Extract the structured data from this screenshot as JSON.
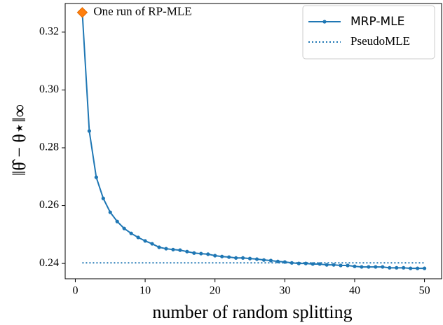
{
  "chart_data": {
    "type": "line",
    "xlabel": "number of random splitting",
    "ylabel": "‖θ̂ − θ⋆‖∞",
    "xlim": [
      -1.45,
      52.45
    ],
    "ylim": [
      0.2347,
      0.3299
    ],
    "xticks": [
      0,
      10,
      20,
      30,
      40,
      50
    ],
    "yticks": [
      0.24,
      0.26,
      0.28,
      {
        "value": 0.3,
        "label": "0.30"
      },
      0.32
    ],
    "legend": "upper right",
    "series": [
      {
        "name": "MRP-MLE",
        "color": "#1f77b4",
        "style": "solid",
        "x": [
          1,
          2,
          3,
          4,
          5,
          6,
          7,
          8,
          9,
          10,
          11,
          12,
          13,
          14,
          15,
          16,
          17,
          18,
          19,
          20,
          21,
          22,
          23,
          24,
          25,
          26,
          27,
          28,
          29,
          30,
          31,
          32,
          33,
          34,
          35,
          36,
          37,
          38,
          39,
          40,
          41,
          42,
          43,
          44,
          45,
          46,
          47,
          48,
          49,
          50
        ],
        "values": [
          0.3268,
          0.2858,
          0.2698,
          0.2625,
          0.2577,
          0.2545,
          0.2521,
          0.2504,
          0.249,
          0.2478,
          0.2468,
          0.2456,
          0.2451,
          0.2448,
          0.2446,
          0.2441,
          0.2436,
          0.2434,
          0.2432,
          0.2427,
          0.2424,
          0.2422,
          0.2419,
          0.2419,
          0.2417,
          0.2415,
          0.2412,
          0.241,
          0.2407,
          0.2405,
          0.2402,
          0.24,
          0.24,
          0.2398,
          0.2398,
          0.2395,
          0.2395,
          0.2393,
          0.2393,
          0.239,
          0.2388,
          0.2388,
          0.2388,
          0.2388,
          0.2385,
          0.2385,
          0.2385,
          0.2383,
          0.2383,
          0.2383
        ]
      },
      {
        "name": "PseudoMLE",
        "color": "#1f77b4",
        "style": "dotted",
        "x": [
          1,
          50
        ],
        "values": [
          0.2402,
          0.2402
        ]
      }
    ],
    "annotation": {
      "text": "One run of RP-MLE",
      "x": 1,
      "y": 0.3268,
      "color": "#ff7f0e"
    }
  }
}
